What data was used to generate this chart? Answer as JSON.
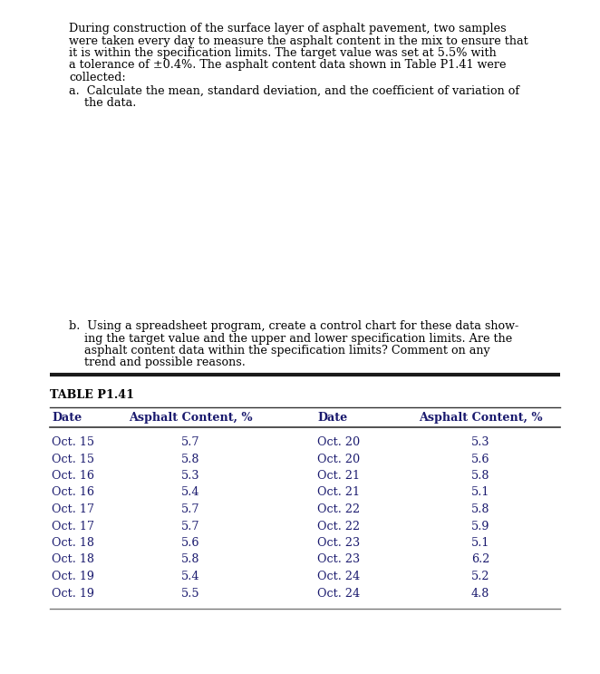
{
  "bg_color": "#ffffff",
  "text_color": "#000000",
  "table_text_color": "#1a1a6e",
  "body_fs": 9.2,
  "table_title": "TABLE P1.41",
  "col1_header": "Date",
  "col2_header": "Asphalt Content, %",
  "col3_header": "Date",
  "col4_header": "Asphalt Content, %",
  "left_dates": [
    "Oct. 15",
    "Oct. 15",
    "Oct. 16",
    "Oct. 16",
    "Oct. 17",
    "Oct. 17",
    "Oct. 18",
    "Oct. 18",
    "Oct. 19",
    "Oct. 19"
  ],
  "left_values": [
    "5.7",
    "5.8",
    "5.3",
    "5.4",
    "5.7",
    "5.7",
    "5.6",
    "5.8",
    "5.4",
    "5.5"
  ],
  "right_dates": [
    "Oct. 20",
    "Oct. 20",
    "Oct. 21",
    "Oct. 21",
    "Oct. 22",
    "Oct. 22",
    "Oct. 23",
    "Oct. 23",
    "Oct. 24",
    "Oct. 24"
  ],
  "right_values": [
    "5.3",
    "5.6",
    "5.8",
    "5.1",
    "5.8",
    "5.9",
    "5.1",
    "6.2",
    "5.2",
    "4.8"
  ],
  "para_lines": [
    "During construction of the surface layer of asphalt pavement, two samples",
    "were taken every day to measure the asphalt content in the mix to ensure that",
    "it is within the specification limits. The target value was set at 5.5% with",
    "a tolerance of ±0.4%. The asphalt content data shown in Table P1.41 were",
    "collected:"
  ],
  "item_a_line1": "a.  Calculate the mean, standard deviation, and the coefficient of variation of",
  "item_a_line2": "the data.",
  "item_b_lines": [
    "b.  Using a spreadsheet program, create a control chart for these data show-",
    "ing the target value and the upper and lower specification limits. Are the",
    "asphalt content data within the specification limits? Comment on any",
    "trend and possible reasons."
  ]
}
